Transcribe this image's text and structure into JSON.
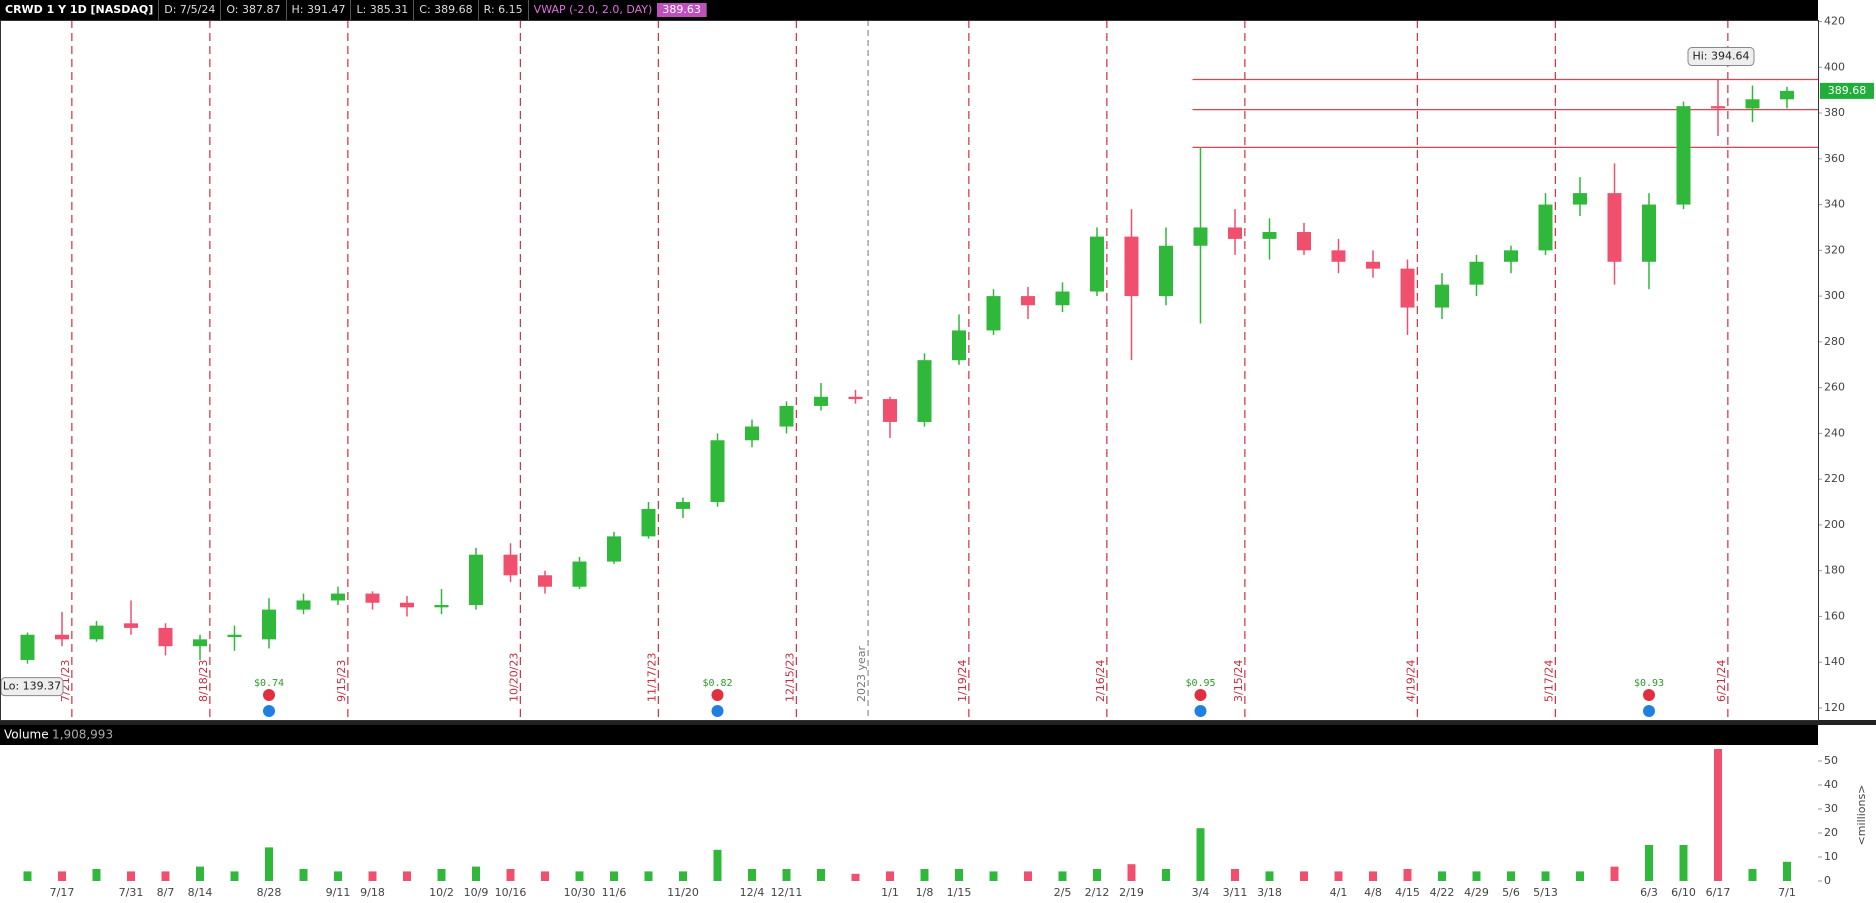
{
  "chart_data": {
    "type": "candlestick",
    "header": {
      "symbol": "CRWD 1 Y 1D [NASDAQ]",
      "date": "D: 7/5/24",
      "open": "O: 387.87",
      "high": "H: 391.47",
      "low": "L: 385.31",
      "close": "C: 389.68",
      "range": "R: 6.15",
      "vwap": "VWAP (-2.0, 2.0, DAY)",
      "vwap_value": "389.63"
    },
    "categories": [
      null,
      "7/17",
      null,
      "7/31",
      "8/7",
      "8/14",
      null,
      "8/28",
      null,
      "9/11",
      "9/18",
      null,
      "10/2",
      "10/9",
      "10/16",
      null,
      "10/30",
      "11/6",
      null,
      "11/20",
      null,
      "12/4",
      "12/11",
      null,
      null,
      "1/1",
      "1/8",
      "1/15",
      null,
      null,
      "2/5",
      "2/12",
      "2/19",
      null,
      "3/4",
      "3/11",
      "3/18",
      null,
      "4/1",
      "4/8",
      "4/15",
      "4/22",
      "4/29",
      "5/6",
      "5/13",
      null,
      null,
      "6/3",
      "6/10",
      "6/17",
      null,
      "7/1"
    ],
    "ohlc": [
      [
        141,
        153,
        139.37,
        152
      ],
      [
        152,
        162,
        147,
        150
      ],
      [
        150,
        158,
        149,
        156
      ],
      [
        157,
        167,
        152,
        155
      ],
      [
        155,
        157,
        143,
        147
      ],
      [
        147,
        152,
        141,
        150
      ],
      [
        151,
        156,
        145,
        152
      ],
      [
        150,
        168,
        146,
        163
      ],
      [
        163,
        170,
        161,
        167
      ],
      [
        167,
        173,
        165,
        170
      ],
      [
        170,
        171,
        163,
        166
      ],
      [
        166,
        169,
        160,
        164
      ],
      [
        164,
        172,
        161,
        165
      ],
      [
        165,
        190,
        163,
        187
      ],
      [
        187,
        192,
        175,
        178
      ],
      [
        178,
        180,
        170,
        173
      ],
      [
        173,
        186,
        172,
        184
      ],
      [
        184,
        197,
        183,
        195
      ],
      [
        195,
        210,
        194,
        207
      ],
      [
        207,
        212,
        203,
        210
      ],
      [
        210,
        240,
        208,
        237
      ],
      [
        237,
        246,
        234,
        243
      ],
      [
        243,
        254,
        240,
        252
      ],
      [
        252,
        262,
        250,
        256
      ],
      [
        256,
        259,
        253,
        255
      ],
      [
        255,
        256,
        238,
        245
      ],
      [
        245,
        275,
        243,
        272
      ],
      [
        272,
        292,
        270,
        285
      ],
      [
        285,
        303,
        283,
        300
      ],
      [
        300,
        304,
        290,
        296
      ],
      [
        296,
        306,
        293,
        302
      ],
      [
        302,
        330,
        300,
        326
      ],
      [
        326,
        338,
        272,
        300
      ],
      [
        300,
        330,
        296,
        322
      ],
      [
        322,
        365,
        288,
        330
      ],
      [
        330,
        338,
        318,
        325
      ],
      [
        325,
        334,
        316,
        328
      ],
      [
        328,
        332,
        318,
        320
      ],
      [
        320,
        325,
        310,
        315
      ],
      [
        315,
        320,
        308,
        312
      ],
      [
        312,
        316,
        283,
        295
      ],
      [
        295,
        310,
        290,
        305
      ],
      [
        305,
        318,
        300,
        315
      ],
      [
        315,
        322,
        310,
        320
      ],
      [
        320,
        345,
        318,
        340
      ],
      [
        340,
        352,
        335,
        345
      ],
      [
        345,
        358,
        305,
        315
      ],
      [
        315,
        345,
        303,
        340
      ],
      [
        340,
        385,
        338,
        383
      ],
      [
        383,
        394.64,
        370,
        382
      ],
      [
        382,
        392,
        376,
        386
      ],
      [
        386,
        391.47,
        382,
        389.68
      ]
    ],
    "up_color": "#2fb83a",
    "down_color": "#f0506e",
    "ylim": [
      120,
      420
    ],
    "yticks": [
      120,
      140,
      160,
      180,
      200,
      220,
      240,
      260,
      280,
      300,
      320,
      340,
      360,
      380,
      400,
      420
    ],
    "last_price": {
      "value": 389.68,
      "label": "389.68"
    },
    "hi_label": "Hi: 394.64",
    "lo_label": "Lo: 139.37",
    "levels": [
      394.64,
      381.5,
      365
    ],
    "expirations": [
      "7/21/23",
      "8/18/23",
      "9/15/23",
      "10/20/23",
      "11/17/23",
      "12/15/23",
      "1/19/24",
      "2/16/24",
      "3/15/24",
      "4/19/24",
      "5/17/24",
      "6/21/24"
    ],
    "year_marker": "2023 year",
    "eps": [
      null,
      null,
      null,
      null,
      null,
      null,
      null,
      "$0.74",
      null,
      null,
      null,
      null,
      null,
      null,
      null,
      null,
      null,
      null,
      null,
      null,
      "$0.82",
      null,
      null,
      null,
      null,
      null,
      null,
      null,
      null,
      null,
      null,
      null,
      null,
      null,
      "$0.95",
      null,
      null,
      null,
      null,
      null,
      null,
      null,
      null,
      null,
      null,
      null,
      null,
      "$0.93",
      null,
      null,
      null,
      null
    ],
    "volume_title": "Volume",
    "volume_last": "1,908,993",
    "volume_unit": "<millions>",
    "volume": [
      4,
      4,
      5,
      4,
      4,
      6,
      4,
      14,
      5,
      4,
      4,
      4,
      5,
      6,
      5,
      4,
      4,
      4,
      4,
      4,
      13,
      5,
      5,
      5,
      3,
      4,
      5,
      5,
      4,
      4,
      4,
      5,
      7,
      5,
      22,
      5,
      4,
      4,
      4,
      4,
      5,
      4,
      4,
      4,
      4,
      4,
      6,
      15,
      15,
      55,
      5,
      8
    ],
    "vlim": [
      0,
      56
    ],
    "vticks": [
      0,
      10,
      20,
      30,
      40,
      50
    ]
  }
}
